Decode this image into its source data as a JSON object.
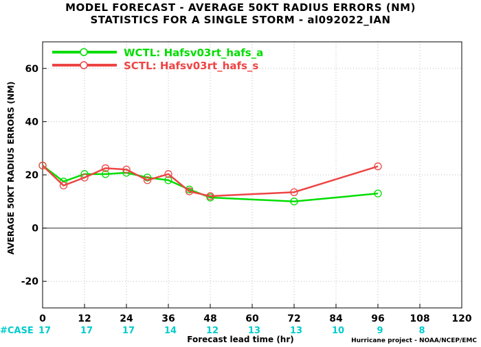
{
  "chart_data": {
    "type": "line",
    "title": "MODEL FORECAST - AVERAGE 50KT RADIUS ERRORS (NM)",
    "subtitle": "STATISTICS FOR A SINGLE STORM - al092022_IAN",
    "xlabel": "Forecast lead time (hr)",
    "ylabel": "AVERAGE 50KT RADIUS ERRORS (NM)",
    "xlim": [
      0,
      120
    ],
    "ylim": [
      -30,
      70
    ],
    "xticks": [
      0,
      12,
      24,
      36,
      48,
      60,
      72,
      84,
      96,
      108,
      120
    ],
    "yticks": [
      -20,
      0,
      20,
      40,
      60
    ],
    "grid": true,
    "legend_position": "top-left",
    "series": [
      {
        "name": "WCTL: Hafsv03rt_hafs_a",
        "color": "#00dd00",
        "x": [
          0,
          6,
          12,
          18,
          24,
          30,
          36,
          42,
          48,
          72,
          96
        ],
        "y": [
          23.5,
          17.5,
          20.3,
          20.3,
          20.8,
          19.0,
          18.0,
          14.5,
          11.5,
          10.0,
          13.0
        ]
      },
      {
        "name": "SCTL: Hafsv03rt_hafs_s",
        "color": "#ee4444",
        "x": [
          0,
          6,
          12,
          18,
          24,
          30,
          36,
          42,
          48,
          72,
          96
        ],
        "y": [
          23.5,
          16.0,
          19.0,
          22.5,
          22.0,
          18.0,
          20.3,
          13.8,
          12.0,
          13.5,
          23.2
        ]
      }
    ],
    "case_label": "#CASE",
    "case_x": [
      0,
      12,
      24,
      36,
      48,
      60,
      72,
      84,
      96,
      108
    ],
    "case_counts": [
      "17",
      "17",
      "17",
      "14",
      "12",
      "13",
      "13",
      "10",
      "9",
      "8"
    ],
    "case_label_color": "#00cccc",
    "credit": "Hurricane project - NOAA/NCEP/EMC"
  }
}
